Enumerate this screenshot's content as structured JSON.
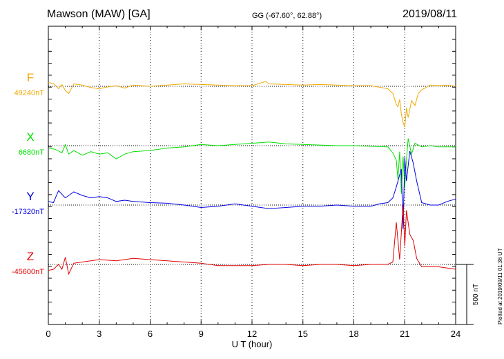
{
  "header": {
    "station": "Mawson (MAW)  [GA]",
    "coords": "GG (-67.60°,  62.88°)",
    "date": "2019/08/11"
  },
  "footer_note": "Plotted at 2019/09/11 01:36 UT",
  "colors": {
    "F": "#f0a800",
    "X": "#00e000",
    "Y": "#0000e0",
    "Z": "#e00000"
  },
  "chart_data": {
    "type": "line",
    "xlabel": "U T (hour)",
    "xlim": [
      0,
      24
    ],
    "x_ticks": [
      "0",
      "3",
      "6",
      "9",
      "12",
      "15",
      "18",
      "21",
      "24"
    ],
    "grid": true,
    "scale_bar": "500 nT",
    "series": [
      {
        "name": "F",
        "baseline": "49240nT",
        "x": [
          0,
          0.3,
          0.6,
          0.8,
          1.0,
          1.2,
          1.5,
          2,
          2.5,
          3,
          3.5,
          4,
          4.5,
          5,
          6,
          7,
          8,
          9,
          10,
          11,
          12,
          12.8,
          13,
          14,
          15,
          16,
          17,
          18,
          19,
          20,
          20.3,
          20.5,
          20.6,
          20.7,
          20.8,
          20.9,
          21.0,
          21.1,
          21.2,
          21.4,
          21.6,
          21.8,
          22,
          22.5,
          23,
          23.5,
          24
        ],
        "y": [
          30,
          25,
          -20,
          15,
          -35,
          -60,
          20,
          10,
          -10,
          -20,
          -5,
          5,
          -15,
          10,
          0,
          10,
          20,
          15,
          10,
          5,
          5,
          40,
          20,
          15,
          10,
          15,
          10,
          5,
          5,
          -20,
          -60,
          -150,
          -170,
          -110,
          -230,
          -300,
          -340,
          -180,
          -260,
          -120,
          -160,
          -60,
          -30,
          10,
          5,
          10,
          0
        ]
      },
      {
        "name": "X",
        "baseline": "6680nT",
        "x": [
          0,
          0.4,
          0.8,
          1.0,
          1.2,
          1.5,
          2,
          2.5,
          3,
          3.5,
          4,
          4.5,
          5,
          6,
          7,
          8,
          9,
          10,
          11,
          12,
          13,
          14,
          15,
          16,
          17,
          18,
          19,
          20,
          20.3,
          20.5,
          20.6,
          20.7,
          20.8,
          20.9,
          21.0,
          21.1,
          21.2,
          21.4,
          21.6,
          22,
          22.5,
          23,
          24
        ],
        "y": [
          -20,
          -30,
          -60,
          10,
          -70,
          -40,
          -80,
          -50,
          -70,
          -60,
          -110,
          -70,
          -50,
          -40,
          -20,
          -10,
          10,
          0,
          10,
          20,
          30,
          15,
          10,
          5,
          0,
          0,
          -5,
          -10,
          -60,
          -120,
          -280,
          -50,
          -400,
          -90,
          -350,
          -120,
          60,
          -70,
          20,
          -10,
          0,
          -10,
          -10
        ]
      },
      {
        "name": "Y",
        "baseline": "-17320nT",
        "x": [
          0,
          0.3,
          0.6,
          1.0,
          1.5,
          2,
          2.5,
          3,
          3.5,
          4,
          4.5,
          5,
          6,
          7,
          8,
          9,
          10,
          11,
          12,
          13,
          14,
          15,
          16,
          17,
          18,
          19,
          19.5,
          20,
          20.3,
          20.5,
          20.6,
          20.8,
          20.9,
          21.0,
          21.1,
          21.3,
          21.5,
          21.7,
          22,
          22.5,
          23,
          23.5,
          24
        ],
        "y": [
          30,
          20,
          120,
          60,
          110,
          80,
          60,
          70,
          60,
          30,
          40,
          30,
          20,
          15,
          0,
          -20,
          -10,
          10,
          -10,
          -30,
          -20,
          -10,
          -10,
          0,
          -10,
          -10,
          10,
          20,
          60,
          150,
          200,
          300,
          -200,
          400,
          200,
          450,
          350,
          200,
          20,
          0,
          0,
          30,
          50
        ]
      },
      {
        "name": "Z",
        "baseline": "-45600nT",
        "x": [
          0,
          0.3,
          0.6,
          0.8,
          1.0,
          1.2,
          1.5,
          2,
          3,
          4,
          5,
          6,
          7,
          8,
          9,
          10,
          11,
          12,
          13,
          14,
          15,
          16,
          17,
          18,
          19,
          20,
          20.3,
          20.5,
          20.7,
          20.9,
          21.0,
          21.1,
          21.3,
          21.5,
          21.7,
          22,
          23,
          24
        ],
        "y": [
          -50,
          -40,
          0,
          -40,
          60,
          -80,
          10,
          20,
          40,
          30,
          50,
          40,
          30,
          20,
          10,
          -10,
          -10,
          -10,
          0,
          0,
          -10,
          0,
          0,
          -10,
          0,
          0,
          20,
          350,
          40,
          500,
          150,
          450,
          250,
          200,
          50,
          -20,
          -20,
          -40
        ]
      }
    ]
  }
}
